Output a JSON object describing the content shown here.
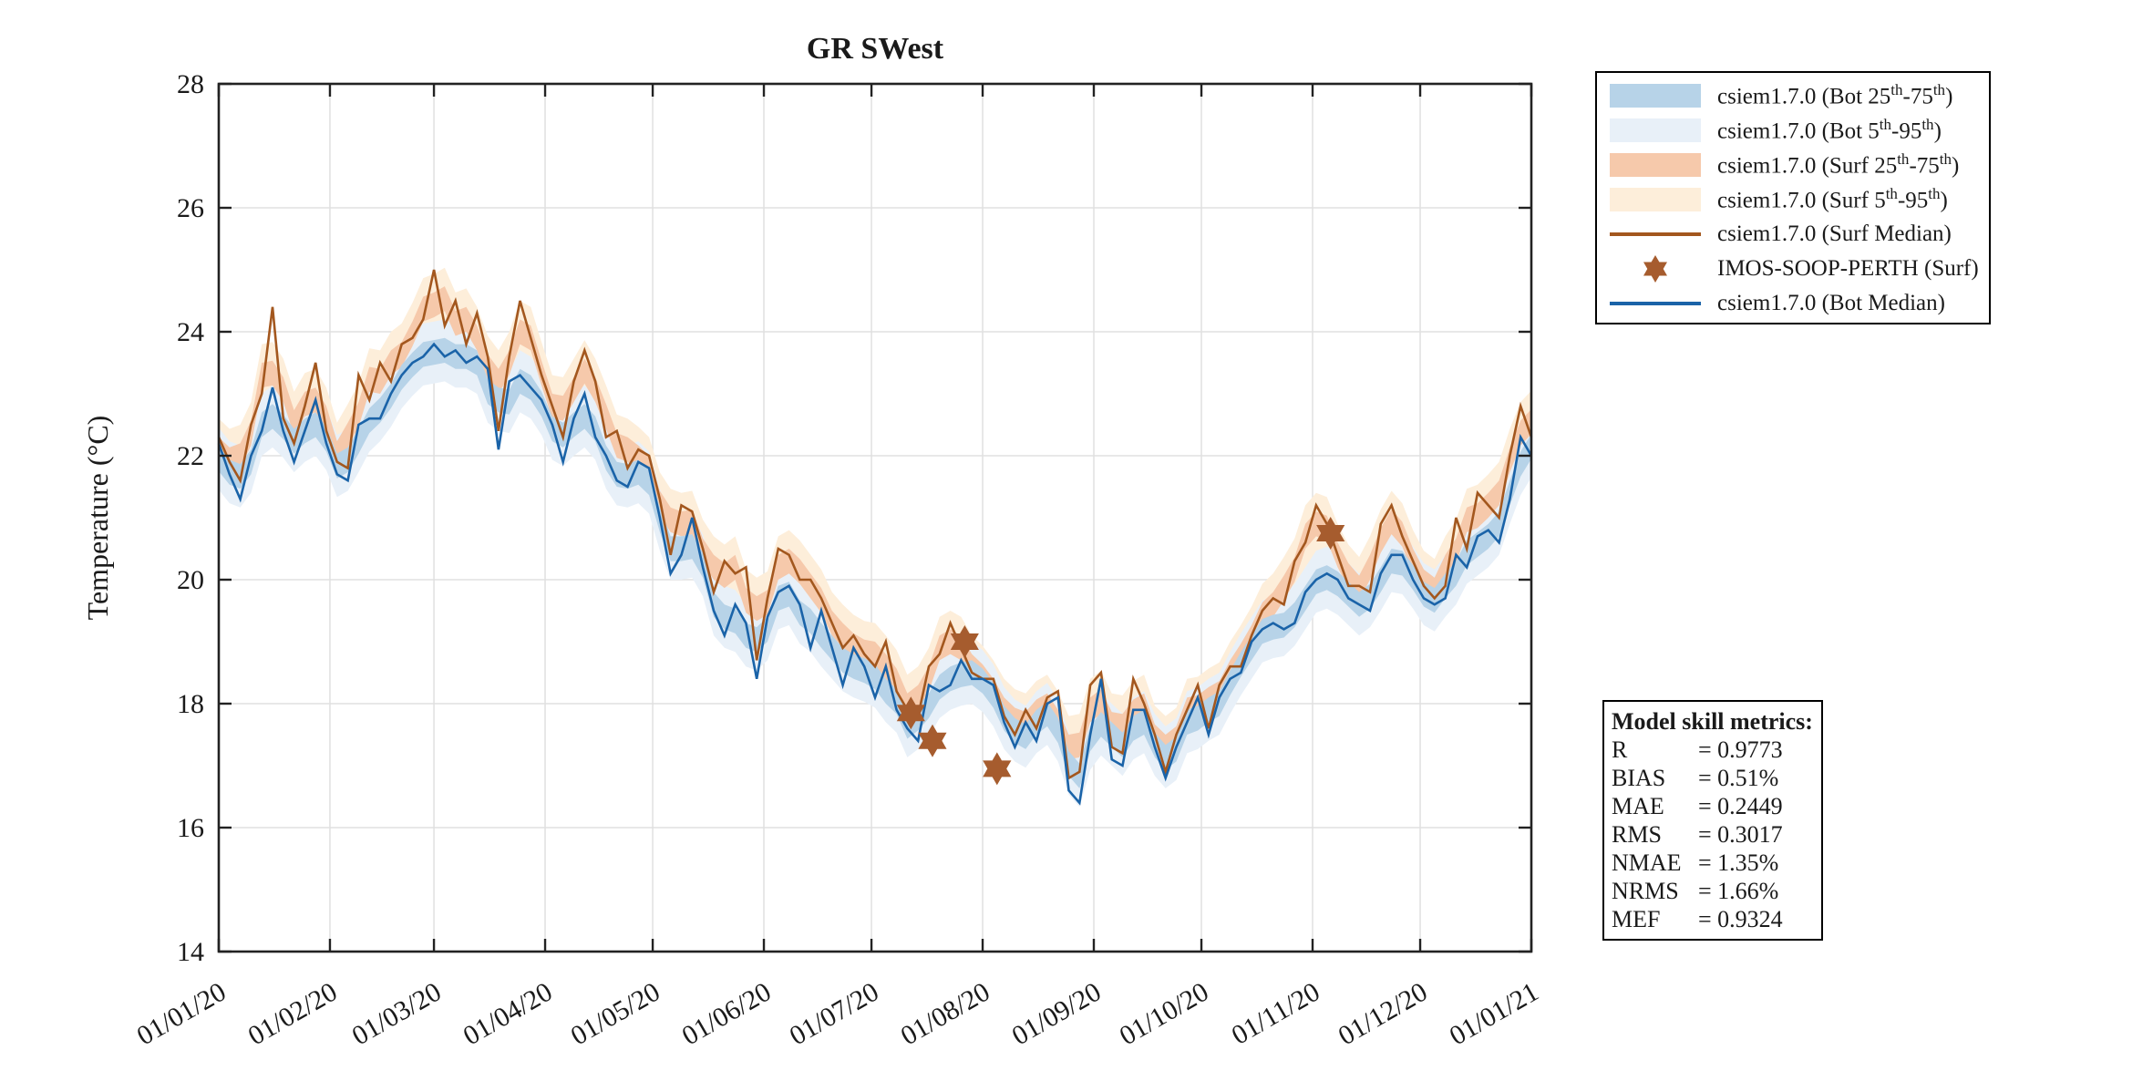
{
  "title": "GR SWest",
  "ylabel": "Temperature (°C)",
  "legend": {
    "items": [
      {
        "label": "csiem1.7.0 (Bot 25th-75th)",
        "swatch": "band",
        "color": "#b7d3e8"
      },
      {
        "label": "csiem1.7.0 (Bot 5th-95th)",
        "swatch": "band",
        "color": "#e8f0f8"
      },
      {
        "label": "csiem1.7.0 (Surf 25th-75th)",
        "swatch": "band",
        "color": "#f6c9ab"
      },
      {
        "label": "csiem1.7.0 (Surf 5th-95th)",
        "swatch": "band",
        "color": "#fdeeda"
      },
      {
        "label": "csiem1.7.0 (Surf Median)",
        "swatch": "line",
        "color": "#a3571e"
      },
      {
        "label": "IMOS-SOOP-PERTH (Surf)",
        "swatch": "star",
        "color": "#a65c2e"
      },
      {
        "label": "csiem1.7.0 (Bot Median)",
        "swatch": "line",
        "color": "#1a63a8"
      }
    ]
  },
  "metrics": {
    "title": "Model skill metrics:",
    "rows": [
      {
        "label": "R",
        "value": "0.9773"
      },
      {
        "label": "BIAS",
        "value": "0.51%"
      },
      {
        "label": "MAE",
        "value": "0.2449"
      },
      {
        "label": "RMS",
        "value": "0.3017"
      },
      {
        "label": "NMAE",
        "value": "1.35%"
      },
      {
        "label": "NRMS",
        "value": "1.66%"
      },
      {
        "label": "MEF",
        "value": "0.9324"
      }
    ]
  },
  "chart_data": {
    "type": "line",
    "title": "GR SWest",
    "ylabel": "Temperature (°C)",
    "grid": true,
    "legend_position": "outside-top-right",
    "ylim": [
      14,
      28
    ],
    "y_ticks": [
      14,
      16,
      18,
      20,
      22,
      24,
      26,
      28
    ],
    "x_unit": "days since 01/01/20",
    "xlim_days": [
      0,
      366
    ],
    "x_ticks": [
      {
        "label": "01/01/20",
        "day": 0
      },
      {
        "label": "01/02/20",
        "day": 31
      },
      {
        "label": "01/03/20",
        "day": 60
      },
      {
        "label": "01/04/20",
        "day": 91
      },
      {
        "label": "01/05/20",
        "day": 121
      },
      {
        "label": "01/06/20",
        "day": 152
      },
      {
        "label": "01/07/20",
        "day": 182
      },
      {
        "label": "01/08/20",
        "day": 213
      },
      {
        "label": "01/09/20",
        "day": 244
      },
      {
        "label": "01/10/20",
        "day": 274
      },
      {
        "label": "01/11/20",
        "day": 305
      },
      {
        "label": "01/12/20",
        "day": 335
      },
      {
        "label": "01/01/21",
        "day": 366
      }
    ],
    "sample_day_step": 3,
    "series": [
      {
        "name": "csiem1.7.0 (Bot Median)",
        "color": "#1a63a8",
        "values": [
          22.2,
          21.7,
          21.3,
          22.0,
          22.4,
          23.1,
          22.4,
          21.9,
          22.4,
          22.9,
          22.2,
          21.7,
          21.6,
          22.5,
          22.6,
          22.6,
          23.0,
          23.3,
          23.5,
          23.6,
          23.8,
          23.6,
          23.7,
          23.5,
          23.6,
          23.4,
          22.1,
          23.2,
          23.3,
          23.1,
          22.9,
          22.5,
          21.9,
          22.6,
          23.0,
          22.3,
          22.0,
          21.6,
          21.5,
          21.9,
          21.8,
          21.0,
          20.1,
          20.4,
          21.0,
          20.2,
          19.5,
          19.1,
          19.6,
          19.3,
          18.4,
          19.4,
          19.8,
          19.9,
          19.6,
          18.9,
          19.5,
          18.9,
          18.3,
          18.9,
          18.6,
          18.1,
          18.6,
          17.9,
          17.6,
          17.4,
          18.3,
          18.2,
          18.3,
          18.7,
          18.4,
          18.4,
          18.3,
          17.7,
          17.3,
          17.7,
          17.4,
          18.0,
          18.1,
          16.6,
          16.4,
          17.5,
          18.4,
          17.1,
          17.0,
          17.9,
          17.9,
          17.3,
          16.8,
          17.3,
          17.7,
          18.1,
          17.5,
          18.1,
          18.4,
          18.5,
          19.0,
          19.2,
          19.3,
          19.2,
          19.3,
          19.8,
          20.0,
          20.1,
          20.0,
          19.7,
          19.6,
          19.5,
          20.1,
          20.4,
          20.4,
          20.0,
          19.7,
          19.6,
          19.7,
          20.4,
          20.2,
          20.7,
          20.8,
          20.6,
          21.3,
          22.3,
          22.0
        ]
      },
      {
        "name": "csiem1.7.0 (Surf Median)",
        "color": "#a3571e",
        "values": [
          22.3,
          21.9,
          21.6,
          22.5,
          23.0,
          24.4,
          22.6,
          22.2,
          22.8,
          23.5,
          22.4,
          21.9,
          21.8,
          23.3,
          22.9,
          23.5,
          23.2,
          23.8,
          23.9,
          24.2,
          25.0,
          24.1,
          24.5,
          23.8,
          24.3,
          23.6,
          22.4,
          23.6,
          24.5,
          23.9,
          23.3,
          22.8,
          22.3,
          23.2,
          23.7,
          23.2,
          22.3,
          22.4,
          21.8,
          22.1,
          22.0,
          21.3,
          20.4,
          21.2,
          21.1,
          20.5,
          19.8,
          20.3,
          20.1,
          20.2,
          18.7,
          19.7,
          20.5,
          20.4,
          20.0,
          20.0,
          19.7,
          19.3,
          18.9,
          19.1,
          18.8,
          18.6,
          19.0,
          18.2,
          17.9,
          17.8,
          18.6,
          18.8,
          19.3,
          18.9,
          18.5,
          18.4,
          18.4,
          17.8,
          17.5,
          17.9,
          17.6,
          18.1,
          18.2,
          16.8,
          16.9,
          18.3,
          18.5,
          17.3,
          17.2,
          18.4,
          18.0,
          17.5,
          16.9,
          17.5,
          17.9,
          18.3,
          17.6,
          18.3,
          18.6,
          18.6,
          19.1,
          19.5,
          19.7,
          19.6,
          20.3,
          20.6,
          21.2,
          20.9,
          20.4,
          19.9,
          19.9,
          19.8,
          20.9,
          21.2,
          20.7,
          20.3,
          19.9,
          19.7,
          19.9,
          21.0,
          20.5,
          21.4,
          21.2,
          21.0,
          22.0,
          22.8,
          22.3
        ]
      }
    ],
    "bands": {
      "note": "percentile envelopes around each median",
      "half_width_25_75": 0.2,
      "half_width_5_95": 0.5,
      "colors": {
        "bot_25_75": "#b7d3e8",
        "bot_5_95": "#e8f0f8",
        "surf_25_75": "#f6c9ab",
        "surf_5_95": "#fdeeda"
      }
    },
    "markers": {
      "name": "IMOS-SOOP-PERTH (Surf)",
      "shape": "six-pointed-star",
      "color": "#a65c2e",
      "points": [
        {
          "date": "12/07/20",
          "day": 193,
          "value": 17.85
        },
        {
          "date": "18/07/20",
          "day": 199,
          "value": 17.4
        },
        {
          "date": "27/07/20",
          "day": 208,
          "value": 19.0
        },
        {
          "date": "05/08/20",
          "day": 217,
          "value": 16.95
        },
        {
          "date": "06/11/20",
          "day": 310,
          "value": 20.75
        }
      ]
    },
    "axis_color": "#222222",
    "grid_color": "#e0e0e0"
  }
}
